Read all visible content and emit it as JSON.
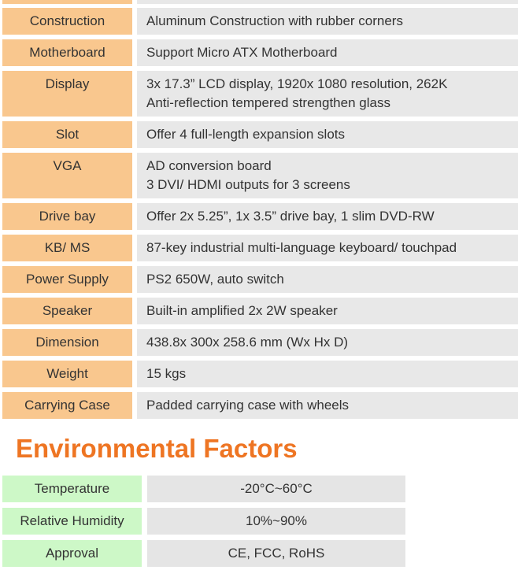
{
  "colors": {
    "page_bg": "#ffffff",
    "text": "#333333",
    "spec_label_bg": "#f9c78e",
    "spec_value_bg": "#e8e8e8",
    "env_label_bg": "#cdf8c7",
    "env_value_bg": "#e5e5e5",
    "heading": "#ee7523"
  },
  "spec_table": {
    "rows": [
      {
        "label": "Construction",
        "value": "Aluminum Construction with rubber corners"
      },
      {
        "label": "Motherboard",
        "value": "Support Micro ATX Motherboard"
      },
      {
        "label": "Display",
        "lines": [
          "3x 17.3” LCD display, 1920x 1080 resolution, 262K",
          "Anti-reflection tempered strengthen glass"
        ]
      },
      {
        "label": "Slot",
        "value": "Offer 4 full-length expansion slots"
      },
      {
        "label": "VGA",
        "lines": [
          "AD conversion board",
          "3 DVI/ HDMI outputs for 3 screens"
        ]
      },
      {
        "label": "Drive bay",
        "value": "Offer 2x 5.25”, 1x 3.5” drive bay, 1 slim DVD-RW"
      },
      {
        "label": "KB/ MS",
        "value": "87-key industrial multi-language keyboard/ touchpad"
      },
      {
        "label": "Power Supply",
        "value": "PS2 650W, auto switch"
      },
      {
        "label": "Speaker",
        "value": "Built-in amplified 2x 2W speaker"
      },
      {
        "label": "Dimension",
        "value": "438.8x 300x 258.6 mm (Wx Hx D)"
      },
      {
        "label": "Weight",
        "value": "15 kgs"
      },
      {
        "label": "Carrying Case",
        "value": "Padded carrying case with wheels"
      }
    ]
  },
  "environmental": {
    "heading": "Environmental Factors",
    "rows": [
      {
        "label": "Temperature",
        "value": "-20°C~60°C"
      },
      {
        "label": "Relative Humidity",
        "value": "10%~90%"
      },
      {
        "label": "Approval",
        "value": "CE, FCC, RoHS"
      }
    ]
  }
}
